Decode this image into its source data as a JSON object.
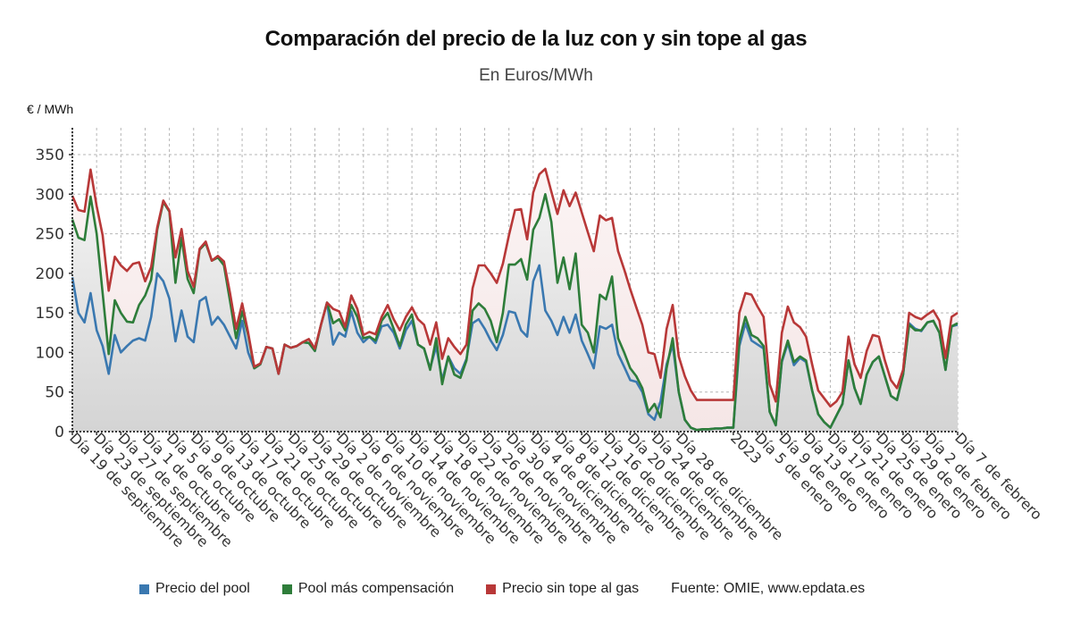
{
  "chart_data": {
    "type": "line",
    "title": "Comparación del precio de la luz con y sin tope al gas",
    "subtitle": "En Euros/MWh",
    "ylabel": "€ / MWh",
    "xlabel": "",
    "ylim": [
      0,
      375
    ],
    "yticks": [
      0,
      50,
      100,
      150,
      200,
      250,
      300,
      350
    ],
    "grid": true,
    "legend_position": "bottom",
    "source": "Fuente: OMIE, www.epdata.es",
    "n_points": 147,
    "x_tick_labels": [
      {
        "index": 0,
        "label": "Día 19 de septiembre"
      },
      {
        "index": 4,
        "label": "Día 23 de septiembre"
      },
      {
        "index": 8,
        "label": "Día 27 de septiembre"
      },
      {
        "index": 12,
        "label": "Día 1 de octubre"
      },
      {
        "index": 16,
        "label": "Día 5 de octubre"
      },
      {
        "index": 20,
        "label": "Día 9 de octubre"
      },
      {
        "index": 24,
        "label": "Día 13 de octubre"
      },
      {
        "index": 28,
        "label": "Día 17 de octubre"
      },
      {
        "index": 32,
        "label": "Día 21 de octubre"
      },
      {
        "index": 36,
        "label": "Día 25 de octubre"
      },
      {
        "index": 40,
        "label": "Día 29 de octubre"
      },
      {
        "index": 44,
        "label": "Día 2 de noviembre"
      },
      {
        "index": 48,
        "label": "Día 6 de noviembre"
      },
      {
        "index": 52,
        "label": "Día 10 de noviembre"
      },
      {
        "index": 56,
        "label": "Día 14 de noviembre"
      },
      {
        "index": 60,
        "label": "Día 18 de noviembre"
      },
      {
        "index": 64,
        "label": "Día 22 de noviembre"
      },
      {
        "index": 68,
        "label": "Día 26 de noviembre"
      },
      {
        "index": 72,
        "label": "Día 30 de noviembre"
      },
      {
        "index": 76,
        "label": "Día 4 de diciembre"
      },
      {
        "index": 80,
        "label": "Día 8 de diciembre"
      },
      {
        "index": 84,
        "label": "Día 12 de diciembre"
      },
      {
        "index": 88,
        "label": "Día 16 de diciembre"
      },
      {
        "index": 92,
        "label": "Día 20 de diciembre"
      },
      {
        "index": 96,
        "label": "Día 24 de diciembre"
      },
      {
        "index": 100,
        "label": "Día 28 de diciembre"
      },
      {
        "index": 109,
        "label": "2023"
      },
      {
        "index": 113,
        "label": "Día 5 de enero"
      },
      {
        "index": 117,
        "label": "Día 9 de enero"
      },
      {
        "index": 121,
        "label": "Día 13 de enero"
      },
      {
        "index": 125,
        "label": "Día 17 de enero"
      },
      {
        "index": 129,
        "label": "Día 21 de enero"
      },
      {
        "index": 133,
        "label": "Día 25 de enero"
      },
      {
        "index": 137,
        "label": "Día 29 de enero"
      },
      {
        "index": 141,
        "label": "Día 2 de febrero"
      },
      {
        "index": 146,
        "label": "Día 7 de febrero"
      }
    ],
    "series": [
      {
        "name": "Precio sin tope al gas",
        "color": "#b83838",
        "values": [
          298,
          280,
          278,
          331,
          285,
          248,
          178,
          221,
          210,
          203,
          212,
          214,
          190,
          208,
          258,
          292,
          279,
          220,
          256,
          203,
          183,
          231,
          240,
          216,
          222,
          215,
          175,
          130,
          162,
          125,
          82,
          86,
          107,
          105,
          73,
          110,
          106,
          108,
          113,
          117,
          105,
          135,
          163,
          155,
          152,
          132,
          172,
          155,
          122,
          126,
          123,
          145,
          160,
          142,
          128,
          145,
          157,
          142,
          135,
          110,
          138,
          92,
          118,
          107,
          98,
          110,
          181,
          210,
          210,
          200,
          188,
          212,
          248,
          280,
          281,
          243,
          302,
          325,
          332,
          303,
          275,
          305,
          285,
          302,
          277,
          252,
          228,
          273,
          267,
          270,
          228,
          205,
          180,
          157,
          135,
          100,
          98,
          68,
          130,
          160,
          95,
          70,
          52,
          40,
          40,
          40,
          40,
          40,
          40,
          40,
          150,
          175,
          173,
          158,
          145,
          60,
          38,
          125,
          158,
          138,
          132,
          120,
          85,
          52,
          42,
          32,
          38,
          50,
          120,
          85,
          68,
          102,
          122,
          120,
          90,
          65,
          55,
          78,
          150,
          145,
          142,
          148,
          153,
          140,
          93,
          145,
          150
        ]
      },
      {
        "name": "Pool más compensación",
        "color": "#2e7d3a",
        "values": [
          268,
          245,
          242,
          297,
          250,
          175,
          98,
          166,
          150,
          139,
          138,
          160,
          172,
          192,
          255,
          290,
          278,
          188,
          245,
          193,
          175,
          230,
          238,
          216,
          220,
          210,
          165,
          118,
          152,
          122,
          80,
          85,
          107,
          105,
          73,
          110,
          106,
          108,
          113,
          112,
          102,
          135,
          163,
          137,
          142,
          128,
          160,
          145,
          118,
          120,
          115,
          140,
          150,
          130,
          108,
          135,
          148,
          110,
          105,
          78,
          118,
          60,
          95,
          72,
          68,
          90,
          153,
          162,
          155,
          140,
          113,
          150,
          211,
          211,
          218,
          192,
          255,
          270,
          300,
          265,
          188,
          220,
          180,
          225,
          135,
          125,
          100,
          173,
          167,
          196,
          118,
          100,
          80,
          70,
          55,
          25,
          35,
          18,
          80,
          118,
          50,
          15,
          5,
          2,
          3,
          3,
          4,
          4,
          5,
          5,
          115,
          145,
          122,
          118,
          108,
          25,
          8,
          90,
          115,
          88,
          95,
          90,
          52,
          22,
          12,
          5,
          20,
          35,
          90,
          55,
          35,
          72,
          88,
          95,
          70,
          45,
          40,
          72,
          135,
          128,
          128,
          138,
          140,
          125,
          78,
          133,
          137
        ]
      },
      {
        "name": "Precio del pool",
        "color": "#3a78b0",
        "values": [
          195,
          150,
          138,
          175,
          128,
          108,
          73,
          122,
          100,
          108,
          115,
          118,
          115,
          145,
          200,
          190,
          168,
          114,
          153,
          120,
          113,
          165,
          170,
          135,
          145,
          135,
          120,
          105,
          140,
          100,
          80,
          85,
          107,
          105,
          73,
          110,
          106,
          108,
          113,
          112,
          102,
          135,
          163,
          110,
          125,
          120,
          152,
          125,
          113,
          120,
          112,
          133,
          135,
          125,
          105,
          128,
          140,
          110,
          105,
          80,
          108,
          65,
          95,
          80,
          73,
          92,
          137,
          142,
          130,
          115,
          103,
          122,
          152,
          150,
          128,
          120,
          190,
          210,
          153,
          140,
          122,
          145,
          125,
          148,
          115,
          98,
          80,
          133,
          130,
          135,
          98,
          82,
          65,
          63,
          50,
          22,
          15,
          38,
          85,
          110,
          50,
          15,
          5,
          2,
          3,
          3,
          4,
          4,
          5,
          5,
          108,
          137,
          115,
          110,
          105,
          25,
          8,
          88,
          112,
          84,
          93,
          88,
          52,
          22,
          12,
          5,
          20,
          35,
          90,
          55,
          35,
          72,
          88,
          95,
          70,
          45,
          40,
          72,
          137,
          130,
          127,
          138,
          140,
          125,
          78,
          133,
          135
        ]
      }
    ]
  },
  "header": {
    "title": "Comparación del precio de la luz con y sin tope al gas",
    "subtitle": "En Euros/MWh",
    "y_unit": "€ / MWh"
  },
  "legend": {
    "items": [
      {
        "label": "Precio del pool",
        "color": "#3a78b0"
      },
      {
        "label": "Pool más compensación",
        "color": "#2e7d3a"
      },
      {
        "label": "Precio sin tope al gas",
        "color": "#b83838"
      }
    ],
    "source": "Fuente: OMIE, www.epdata.es"
  }
}
